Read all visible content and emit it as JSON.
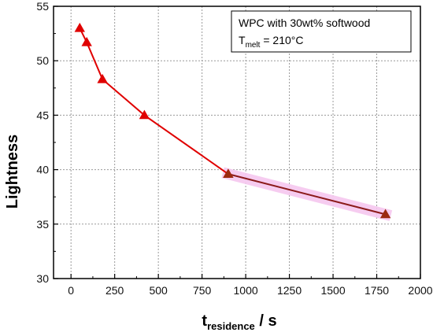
{
  "chart_data": {
    "type": "line",
    "xlabel_main": "t",
    "xlabel_sub": "residence",
    "xlabel_unit": " / s",
    "ylabel": "Lightness",
    "xlim": [
      -100,
      2000
    ],
    "ylim": [
      30,
      55
    ],
    "x_ticks": [
      0,
      250,
      500,
      750,
      1000,
      1250,
      1500,
      1750,
      2000
    ],
    "y_ticks": [
      30,
      35,
      40,
      45,
      50,
      55
    ],
    "grid": true,
    "legend_placement": "top-right",
    "annotation": {
      "line1": "WPC with 30wt% softwood",
      "line2_main": "T",
      "line2_sub": "melt",
      "line2_rest": " = 210°C"
    },
    "series": [
      {
        "color": "#e00000",
        "marker_color": "#e00000",
        "points": [
          {
            "x": 50,
            "y": 53.0
          },
          {
            "x": 90,
            "y": 51.7
          },
          {
            "x": 180,
            "y": 48.3
          },
          {
            "x": 420,
            "y": 45.0
          },
          {
            "x": 900,
            "y": 39.6
          }
        ]
      },
      {
        "color": "#8b1a1a",
        "marker_color": "#9b2a10",
        "highlight_color": "#f5c6ee",
        "points": [
          {
            "x": 900,
            "y": 39.6
          },
          {
            "x": 1800,
            "y": 35.9
          }
        ]
      }
    ]
  }
}
